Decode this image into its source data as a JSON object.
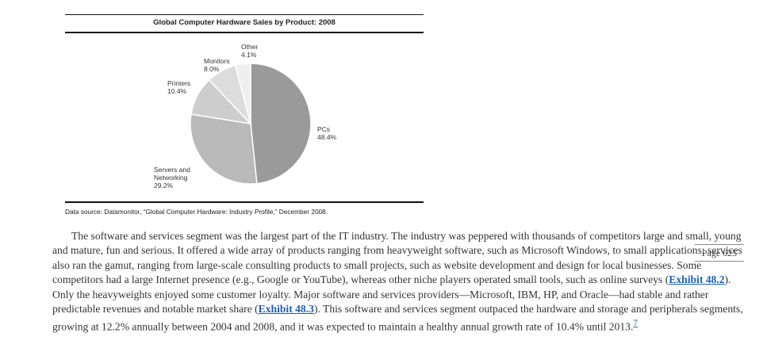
{
  "chart_data": {
    "type": "pie",
    "title": "Global Computer Hardware Sales by Product: 2008",
    "slices": [
      {
        "name": "PCs",
        "value": 48.4,
        "label": "48.4%",
        "color": "#9a9a9a"
      },
      {
        "name": "Servers and Networking",
        "value": 29.2,
        "label": "29.2%",
        "color": "#b9b9b9"
      },
      {
        "name": "Printers",
        "value": 10.4,
        "label": "10.4%",
        "color": "#cdcdcd"
      },
      {
        "name": "Monitors",
        "value": 8.0,
        "label": "8.0%",
        "color": "#dcdcdc"
      },
      {
        "name": "Other",
        "value": 4.1,
        "label": "4.1%",
        "color": "#eeeeee"
      }
    ]
  },
  "source": "Data source: Datamonitor, “Global Computer Hardware: Industry Profile,” December 2008.",
  "page_marker": "Page 625",
  "paragraph": {
    "t1": "The software and services segment was the largest part of the IT industry. The industry was peppered with thousands of competitors large and small, young and mature, fun and serious. It offered a wide array of products ranging from heavyweight software, such as Microsoft Windows, to small applications; services also ran the gamut, ranging from large-scale consulting products to small projects, such as website development and design for local businesses. Some competitors had a large Internet presence (e.g., Google or YouTube), whereas other niche players operated small tools, such as online surveys (",
    "link1": "Exhibit 48.2",
    "t2": "). Only the heavyweights enjoyed some customer loyalty. Major software and services providers—Microsoft, IBM, HP, and Oracle—had stable and rather predictable revenues and notable market share (",
    "link2": "Exhibit 48.3",
    "t3": "). This software and services segment outpaced the hardware and storage and peripherals segments, growing at 12.2% annually between 2004 and 2008, and it was expected to maintain a healthy annual growth rate of 10.4% until 2013.",
    "footnote": "7"
  }
}
